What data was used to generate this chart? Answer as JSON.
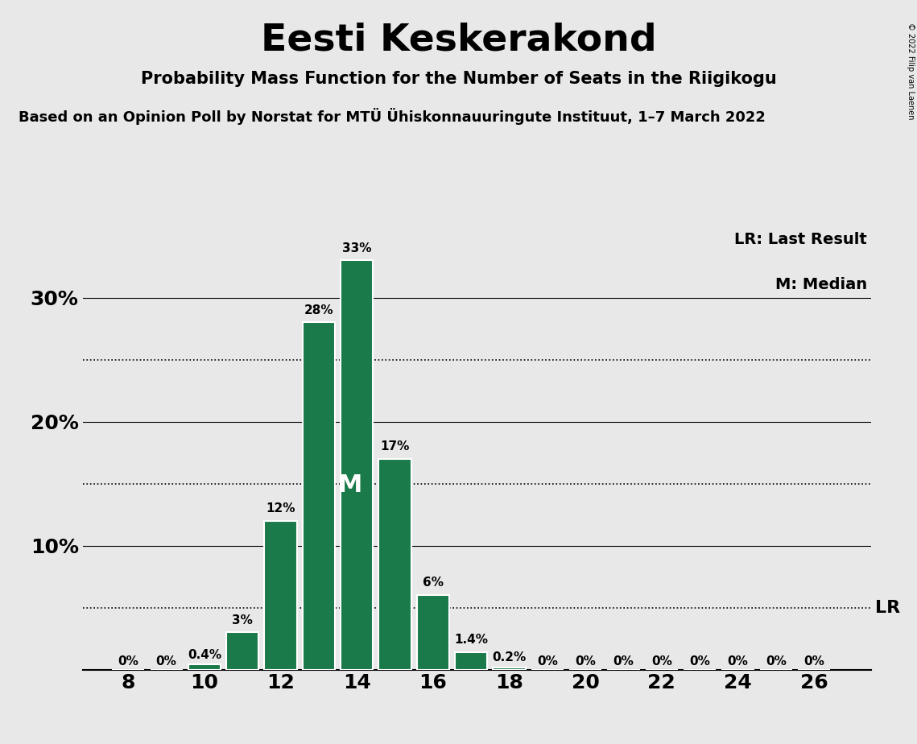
{
  "title": "Eesti Keskerakond",
  "subtitle": "Probability Mass Function for the Number of Seats in the Riigikogu",
  "source_line": "Based on an Opinion Poll by Norstat for MTÜ Ühiskonnauuringute Instituut, 1–7 March 2022",
  "copyright": "© 2022 Filip van Laenen",
  "seats": [
    8,
    9,
    10,
    11,
    12,
    13,
    14,
    15,
    16,
    17,
    18,
    19,
    20,
    21,
    22,
    23,
    24,
    25,
    26
  ],
  "probabilities": [
    0.0,
    0.0,
    0.4,
    3.0,
    12.0,
    28.0,
    33.0,
    17.0,
    6.0,
    1.4,
    0.2,
    0.0,
    0.0,
    0.0,
    0.0,
    0.0,
    0.0,
    0.0,
    0.0
  ],
  "bar_color": "#1a7a4a",
  "background_color": "#e8e8e8",
  "bar_labels": [
    "0%",
    "0%",
    "0.4%",
    "3%",
    "12%",
    "28%",
    "33%",
    "17%",
    "6%",
    "1.4%",
    "0.2%",
    "0%",
    "0%",
    "0%",
    "0%",
    "0%",
    "0%",
    "0%",
    "0%"
  ],
  "median_seat": 14,
  "lr_value": 5.0,
  "lr_label": "LR",
  "ymax": 36,
  "solid_grid": [
    10,
    20,
    30
  ],
  "dotted_grid": [
    5,
    15,
    25
  ],
  "ytick_positions": [
    10,
    20,
    30
  ],
  "ytick_labels": [
    "10%",
    "20%",
    "30%"
  ],
  "xticks": [
    8,
    10,
    12,
    14,
    16,
    18,
    20,
    22,
    24,
    26
  ],
  "legend_lr": "LR: Last Result",
  "legend_m": "M: Median",
  "bar_width": 0.85
}
